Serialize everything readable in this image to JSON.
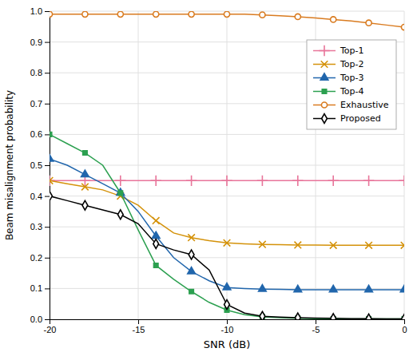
{
  "chart_data": {
    "type": "line",
    "xlabel": "SNR (dB)",
    "ylabel": "Beam misalignment probability",
    "x": [
      -20,
      -19,
      -18,
      -17,
      -16,
      -15,
      -14,
      -13,
      -12,
      -11,
      -10,
      -9,
      -8,
      -7,
      -6,
      -5,
      -4,
      -3,
      -2,
      -1,
      0
    ],
    "series": [
      {
        "name": "Top-1",
        "color": "#e8759a",
        "marker": "plus",
        "values": [
          0.45,
          0.45,
          0.45,
          0.45,
          0.45,
          0.45,
          0.45,
          0.45,
          0.45,
          0.45,
          0.45,
          0.45,
          0.45,
          0.45,
          0.45,
          0.45,
          0.45,
          0.45,
          0.45,
          0.45,
          0.45
        ]
      },
      {
        "name": "Top-2",
        "color": "#d4920a",
        "marker": "x",
        "values": [
          0.45,
          0.44,
          0.43,
          0.42,
          0.4,
          0.37,
          0.32,
          0.28,
          0.265,
          0.255,
          0.248,
          0.245,
          0.243,
          0.242,
          0.241,
          0.241,
          0.24,
          0.24,
          0.24,
          0.24,
          0.24
        ]
      },
      {
        "name": "Top-3",
        "color": "#2166ac",
        "marker": "triangle-up",
        "values": [
          0.52,
          0.5,
          0.47,
          0.44,
          0.41,
          0.35,
          0.27,
          0.2,
          0.155,
          0.125,
          0.103,
          0.1,
          0.098,
          0.097,
          0.096,
          0.096,
          0.096,
          0.096,
          0.096,
          0.096,
          0.096
        ]
      },
      {
        "name": "Top-4",
        "color": "#2ca050",
        "marker": "square",
        "values": [
          0.6,
          0.57,
          0.54,
          0.5,
          0.41,
          0.29,
          0.175,
          0.13,
          0.09,
          0.055,
          0.03,
          0.015,
          0.008,
          0.005,
          0.003,
          0.002,
          0.001,
          0.001,
          0.001,
          0.001,
          0.001
        ]
      },
      {
        "name": "Exhaustive",
        "color": "#d97b20",
        "marker": "circle-open",
        "values": [
          0.99,
          0.99,
          0.99,
          0.99,
          0.99,
          0.99,
          0.99,
          0.99,
          0.99,
          0.99,
          0.99,
          0.99,
          0.988,
          0.985,
          0.982,
          0.978,
          0.973,
          0.968,
          0.962,
          0.955,
          0.948
        ]
      },
      {
        "name": "Proposed",
        "color": "#000000",
        "marker": "diamond-open",
        "values": [
          0.4,
          0.385,
          0.37,
          0.355,
          0.34,
          0.31,
          0.245,
          0.225,
          0.21,
          0.16,
          0.048,
          0.02,
          0.01,
          0.007,
          0.005,
          0.004,
          0.003,
          0.002,
          0.002,
          0.001,
          0.001
        ]
      }
    ],
    "xlim": [
      -20,
      0
    ],
    "ylim": [
      0,
      1
    ],
    "xticks": [
      -20,
      -15,
      -10,
      -5,
      0
    ],
    "yticks": [
      {
        "value": 0,
        "label": "0.0"
      },
      0.1,
      0.2,
      0.3,
      0.4,
      0.5,
      0.6,
      0.7,
      0.8,
      0.9,
      {
        "value": 1,
        "label": "1.0"
      }
    ],
    "grid": true,
    "legend": "upper-right"
  }
}
